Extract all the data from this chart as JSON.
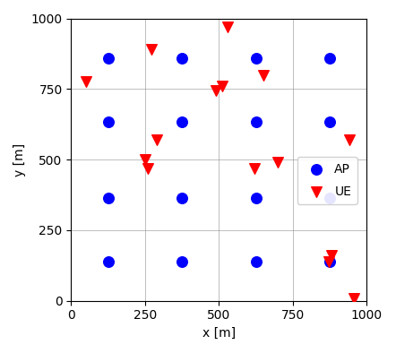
{
  "ue_x": [
    50,
    270,
    290,
    250,
    260,
    490,
    510,
    530,
    620,
    650,
    700,
    870,
    880,
    940,
    955
  ],
  "ue_y": [
    775,
    890,
    570,
    500,
    470,
    745,
    760,
    970,
    470,
    800,
    490,
    140,
    160,
    570,
    10
  ],
  "ap_x": [
    125,
    125,
    125,
    125,
    375,
    375,
    375,
    375,
    625,
    625,
    625,
    625,
    875,
    875,
    875,
    875
  ],
  "ap_y": [
    860,
    635,
    365,
    140,
    860,
    635,
    365,
    140,
    860,
    635,
    365,
    140,
    860,
    635,
    365,
    140
  ],
  "ue_color": "#ff0000",
  "ap_color": "#0000ff",
  "xlabel": "x [m]",
  "ylabel": "y [m]",
  "xlim": [
    0,
    1000
  ],
  "ylim": [
    0,
    1000
  ],
  "xticks": [
    0,
    250,
    500,
    750,
    1000
  ],
  "yticks": [
    0,
    250,
    500,
    750,
    1000
  ],
  "legend_ue": "UE",
  "legend_ap": "AP",
  "grid": true,
  "ue_marker": "v",
  "ap_marker": "o",
  "ue_size": 70,
  "ap_size": 70
}
